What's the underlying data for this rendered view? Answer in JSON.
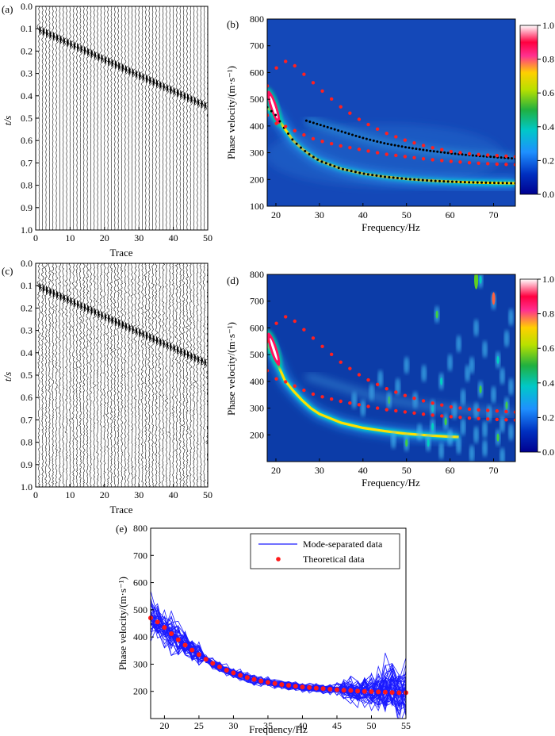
{
  "panels": {
    "a": {
      "label": "(a)",
      "xlabel": "Trace",
      "ylabel": "t/s",
      "xticks": [
        "0",
        "10",
        "20",
        "30",
        "40",
        "50"
      ],
      "yticks": [
        "0.0",
        "0.1",
        "0.2",
        "0.3",
        "0.4",
        "0.5",
        "0.6",
        "0.7",
        "0.8",
        "0.9",
        "1.0"
      ]
    },
    "b": {
      "label": "(b)",
      "xlabel": "Frequency/Hz",
      "ylabel": "Phase velocity/(m·s⁻¹)",
      "xticks": [
        "20",
        "30",
        "40",
        "50",
        "60",
        "70"
      ],
      "yticks": [
        "100",
        "200",
        "300",
        "400",
        "500",
        "600",
        "700",
        "800"
      ],
      "colorbar_ticks": [
        "1.0",
        "0.8",
        "0.6",
        "0.4",
        "0.2",
        "0.0"
      ]
    },
    "c": {
      "label": "(c)",
      "xlabel": "Trace",
      "ylabel": "t/s",
      "xticks": [
        "0",
        "10",
        "20",
        "30",
        "40",
        "50"
      ],
      "yticks": [
        "0.0",
        "0.1",
        "0.2",
        "0.3",
        "0.4",
        "0.5",
        "0.6",
        "0.7",
        "0.8",
        "0.9",
        "1.0"
      ]
    },
    "d": {
      "label": "(d)",
      "xlabel": "Frequency/Hz",
      "ylabel": "Phase velocity/(m·s⁻¹)",
      "xticks": [
        "20",
        "30",
        "40",
        "50",
        "60",
        "70"
      ],
      "yticks": [
        "200",
        "300",
        "400",
        "500",
        "600",
        "700",
        "800"
      ],
      "colorbar_ticks": [
        "1.0",
        "0.8",
        "0.6",
        "0.4",
        "0.2",
        "0.0"
      ]
    },
    "e": {
      "label": "(e)",
      "xlabel": "Frequency/Hz",
      "ylabel": "Phase velocity/(m·s⁻¹)",
      "xticks": [
        "20",
        "25",
        "30",
        "35",
        "40",
        "45",
        "50",
        "55"
      ],
      "yticks": [
        "200",
        "300",
        "400",
        "500",
        "600",
        "700",
        "800"
      ],
      "legend": [
        "Mode-separated data",
        "Theoretical data"
      ]
    }
  },
  "colors": {
    "blue_line": "#1a1aff",
    "red_point": "#ff1a1a",
    "black_point": "#000000"
  },
  "chart_data": [
    {
      "type": "line",
      "panel": "a",
      "title": "",
      "xlabel": "Trace",
      "ylabel": "t/s",
      "xlim": [
        0,
        50
      ],
      "ylim": [
        0.0,
        1.0
      ],
      "arrival": {
        "trace": [
          1,
          50
        ],
        "t": [
          0.105,
          0.45
        ]
      }
    },
    {
      "type": "heatmap",
      "panel": "b",
      "title": "",
      "xlabel": "Frequency/Hz",
      "ylabel": "Phase velocity/(m·s⁻¹)",
      "xlim": [
        18,
        75
      ],
      "ylim": [
        100,
        800
      ],
      "clim": [
        0.0,
        1.0
      ],
      "series": [
        {
          "values_freq": [
            18,
            20,
            22,
            24,
            26,
            28,
            30,
            35,
            40,
            45,
            50,
            55,
            60,
            65,
            70,
            75
          ],
          "values_vel": [
            470,
            440,
            390,
            345,
            315,
            290,
            270,
            240,
            222,
            210,
            202,
            196,
            192,
            189,
            187,
            186
          ]
        },
        {
          "values_freq": [
            27,
            30,
            35,
            40,
            45,
            50,
            55,
            60,
            65,
            70,
            75
          ],
          "values_vel": [
            420,
            405,
            380,
            355,
            335,
            320,
            308,
            298,
            290,
            284,
            278
          ]
        },
        {
          "values_freq": [
            18,
            19,
            20,
            21,
            22,
            23,
            24,
            25,
            26,
            28,
            30,
            35,
            40,
            45,
            50,
            55,
            60,
            65,
            70,
            75
          ],
          "values_vel": [
            550,
            590,
            615,
            632,
            642,
            640,
            630,
            615,
            600,
            570,
            540,
            470,
            415,
            375,
            345,
            322,
            305,
            295,
            290,
            285
          ]
        },
        {
          "values_freq": [
            18,
            20,
            22,
            24,
            26,
            28,
            30,
            35,
            40,
            45,
            50,
            55,
            60,
            65,
            70,
            75
          ],
          "values_vel": [
            440,
            410,
            400,
            385,
            370,
            355,
            345,
            325,
            310,
            295,
            285,
            275,
            268,
            262,
            258,
            255
          ]
        }
      ]
    },
    {
      "type": "line",
      "panel": "c",
      "title": "",
      "xlabel": "Trace",
      "ylabel": "t/s",
      "xlim": [
        0,
        50
      ],
      "ylim": [
        0.0,
        1.0
      ],
      "arrival": {
        "trace": [
          1,
          50
        ],
        "t": [
          0.105,
          0.45
        ]
      }
    },
    {
      "type": "heatmap",
      "panel": "d",
      "title": "",
      "xlabel": "Frequency/Hz",
      "ylabel": "Phase velocity/(m·s⁻¹)",
      "xlim": [
        18,
        75
      ],
      "ylim": [
        100,
        800
      ],
      "clim": [
        0.0,
        1.0
      ],
      "series": [
        {
          "values_freq": [
            18,
            19,
            20,
            21,
            22,
            23,
            24,
            25,
            26,
            28,
            30,
            35,
            40,
            45,
            50,
            55,
            60,
            65,
            70,
            75
          ],
          "values_vel": [
            550,
            590,
            615,
            632,
            642,
            640,
            630,
            615,
            600,
            570,
            540,
            470,
            415,
            375,
            345,
            322,
            305,
            295,
            290,
            285
          ]
        },
        {
          "values_freq": [
            18,
            20,
            22,
            24,
            26,
            28,
            30,
            35,
            40,
            45,
            50,
            55,
            60,
            65,
            70,
            75
          ],
          "values_vel": [
            440,
            410,
            400,
            385,
            370,
            355,
            345,
            325,
            310,
            295,
            285,
            275,
            268,
            262,
            258,
            255
          ]
        }
      ]
    },
    {
      "type": "line",
      "panel": "e",
      "title": "",
      "xlabel": "Frequency/Hz",
      "ylabel": "Phase velocity/(m·s⁻¹)",
      "xlim": [
        18,
        55
      ],
      "ylim": [
        150,
        800
      ],
      "legend_position": "top-right",
      "series": [
        {
          "name": "Theoretical data",
          "x": [
            18,
            19,
            20,
            21,
            22,
            23,
            24,
            25,
            26,
            27,
            28,
            29,
            30,
            31,
            32,
            33,
            34,
            35,
            36,
            37,
            38,
            39,
            40,
            41,
            42,
            43,
            44,
            45,
            46,
            47,
            48,
            49,
            50,
            51,
            52,
            53,
            54,
            55
          ],
          "values": [
            470,
            455,
            435,
            412,
            390,
            370,
            352,
            335,
            318,
            303,
            290,
            278,
            268,
            259,
            251,
            244,
            238,
            233,
            229,
            225,
            222,
            219,
            216,
            214,
            212,
            210,
            208,
            206,
            204,
            203,
            201,
            200,
            199,
            198,
            197,
            196,
            195,
            195
          ]
        }
      ]
    }
  ]
}
